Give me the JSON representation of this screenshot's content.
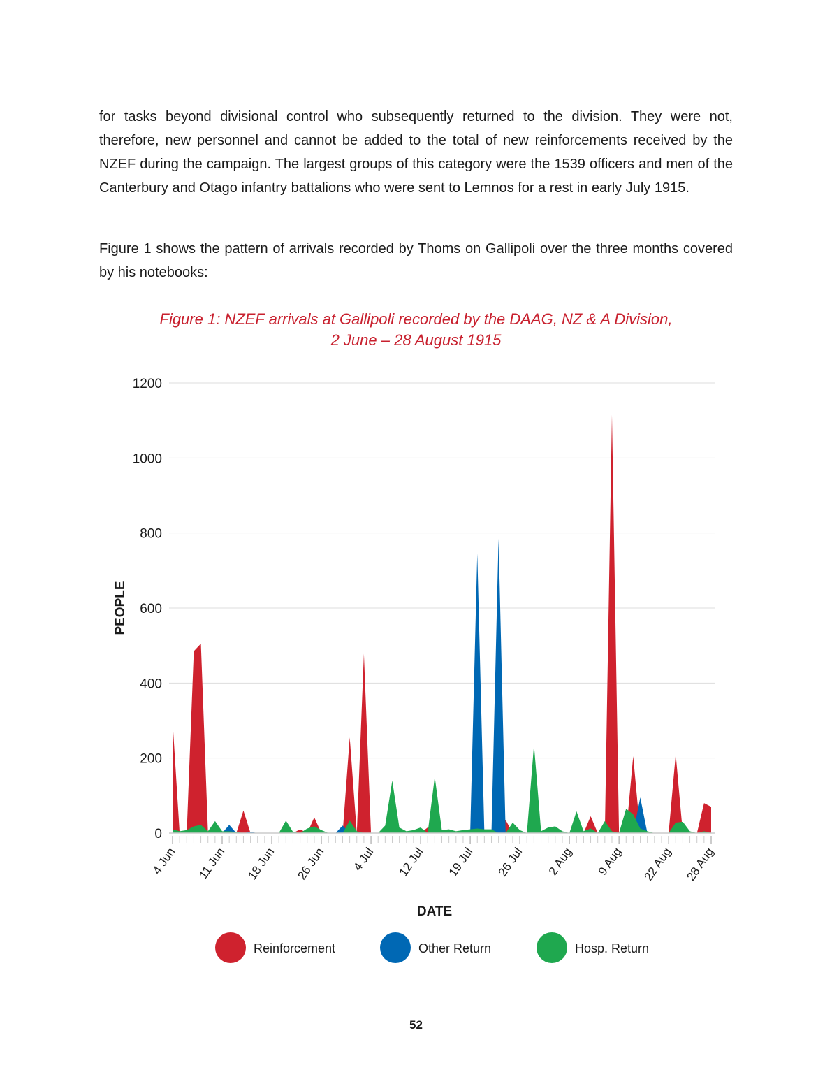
{
  "page": {
    "paragraphs": [
      "for tasks beyond divisional control who subsequently returned to the division. They were not, therefore, new personnel and cannot be added to the total of new reinforcements received by the NZEF during the campaign. The largest groups of this category were the 1539 officers and men of the Canterbury and Otago infantry battalions who were sent to Lemnos for a rest in early July 1915.",
      "Figure 1 shows the pattern of arrivals recorded by Thoms on Gallipoli over the three months covered by his notebooks:"
    ],
    "page_number": "52"
  },
  "chart_data": {
    "type": "area",
    "title": [
      "Figure 1: NZEF arrivals at Gallipoli recorded by the DAAG, NZ & A Division,",
      "2 June – 28 August 1915"
    ],
    "x_label": "DATE",
    "y_label": "PEOPLE",
    "categories": [
      "4 Jun",
      null,
      null,
      null,
      null,
      null,
      null,
      "11 Jun",
      null,
      null,
      null,
      null,
      null,
      null,
      "18 Jun",
      null,
      null,
      null,
      null,
      null,
      null,
      "26 Jun",
      null,
      null,
      null,
      null,
      null,
      null,
      "4 Jul",
      null,
      null,
      null,
      null,
      null,
      null,
      "12 Jul",
      null,
      null,
      null,
      null,
      null,
      null,
      "19 Jul",
      null,
      null,
      null,
      null,
      null,
      null,
      "26 Jul",
      null,
      null,
      null,
      null,
      null,
      null,
      "2 Aug",
      null,
      null,
      null,
      null,
      null,
      null,
      "9 Aug",
      null,
      null,
      null,
      null,
      null,
      null,
      "22 Aug",
      null,
      null,
      null,
      null,
      null,
      "28 Aug"
    ],
    "series": [
      {
        "name": "Reinforcement",
        "color": "#cf222e",
        "values": [
          300,
          0,
          0,
          485,
          505,
          0,
          0,
          0,
          0,
          0,
          60,
          0,
          0,
          0,
          0,
          0,
          0,
          0,
          10,
          0,
          42,
          0,
          0,
          0,
          0,
          255,
          0,
          478,
          0,
          0,
          0,
          45,
          0,
          0,
          0,
          0,
          15,
          20,
          0,
          0,
          0,
          0,
          0,
          0,
          0,
          0,
          0,
          35,
          0,
          0,
          0,
          0,
          0,
          8,
          0,
          0,
          0,
          0,
          0,
          45,
          0,
          0,
          1115,
          0,
          0,
          205,
          0,
          0,
          0,
          0,
          0,
          210,
          0,
          0,
          0,
          80,
          70
        ]
      },
      {
        "name": "Other Return",
        "color": "#0068b4",
        "values": [
          0,
          0,
          0,
          0,
          0,
          0,
          0,
          0,
          22,
          0,
          0,
          3,
          0,
          0,
          0,
          0,
          0,
          0,
          0,
          0,
          0,
          0,
          0,
          0,
          20,
          0,
          0,
          0,
          0,
          0,
          0,
          0,
          0,
          0,
          0,
          0,
          0,
          0,
          0,
          0,
          0,
          0,
          0,
          745,
          0,
          0,
          785,
          0,
          0,
          0,
          0,
          0,
          0,
          0,
          0,
          0,
          0,
          0,
          0,
          0,
          0,
          0,
          0,
          0,
          0,
          0,
          95,
          0,
          0,
          0,
          0,
          0,
          0,
          0,
          0,
          0,
          0
        ]
      },
      {
        "name": "Hosp. Return",
        "color": "#1fa84f",
        "values": [
          10,
          5,
          8,
          18,
          22,
          5,
          32,
          5,
          5,
          3,
          0,
          0,
          0,
          0,
          0,
          0,
          33,
          3,
          0,
          12,
          18,
          8,
          0,
          0,
          0,
          33,
          5,
          0,
          0,
          0,
          20,
          140,
          15,
          5,
          8,
          15,
          0,
          150,
          8,
          10,
          5,
          8,
          10,
          12,
          10,
          10,
          0,
          0,
          28,
          8,
          0,
          235,
          5,
          15,
          18,
          5,
          0,
          58,
          5,
          12,
          0,
          32,
          5,
          0,
          65,
          50,
          12,
          5,
          0,
          0,
          0,
          28,
          30,
          5,
          0,
          5,
          0
        ]
      }
    ],
    "ylim": [
      0,
      1200
    ],
    "yticks": [
      0,
      200,
      400,
      600,
      800,
      1000,
      1200
    ],
    "grid": true,
    "legend": "bottom"
  }
}
